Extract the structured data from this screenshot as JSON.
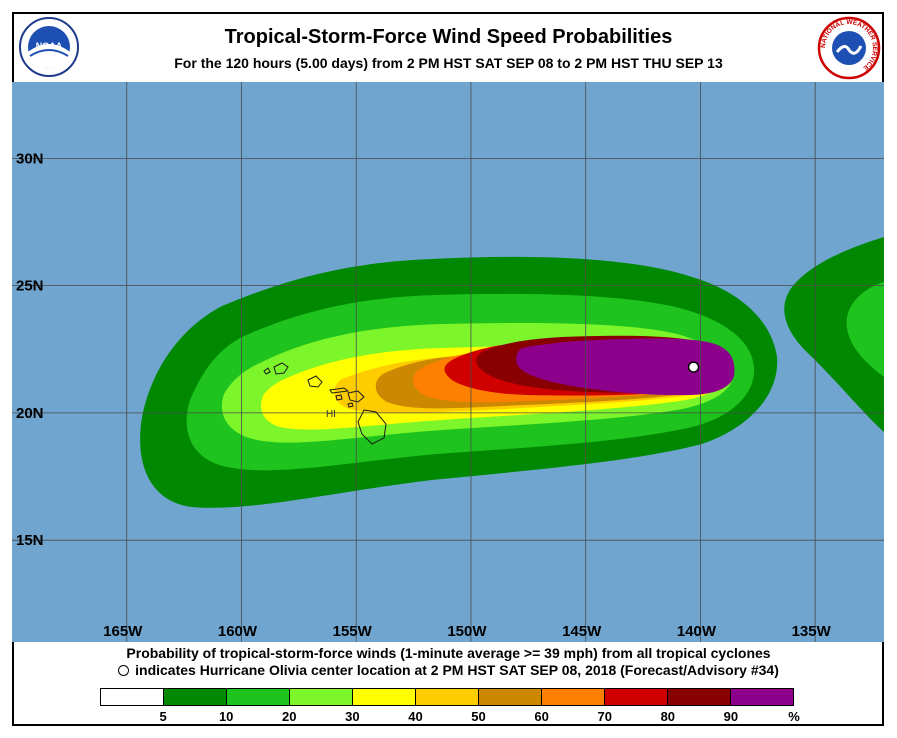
{
  "header": {
    "title": "Tropical-Storm-Force Wind Speed Probabilities",
    "subtitle": "For the 120 hours (5.00 days) from 2 PM HST SAT SEP 08 to 2 PM HST THU SEP 13",
    "left_logo": "NOAA",
    "right_logo": "NATIONAL WEATHER SERVICE"
  },
  "map": {
    "extent": {
      "lon_min": -170,
      "lon_max": -132,
      "lat_min": 11,
      "lat_max": 33
    },
    "ocean_color": "#6fa5cf",
    "grid_color": "#4a4a4a",
    "lat_labels": [
      {
        "lat": 30,
        "label": "30N"
      },
      {
        "lat": 25,
        "label": "25N"
      },
      {
        "lat": 20,
        "label": "20N"
      },
      {
        "lat": 15,
        "label": "15N"
      }
    ],
    "lon_labels": [
      {
        "lon": -165,
        "label": "165W"
      },
      {
        "lon": -160,
        "label": "160W"
      },
      {
        "lon": -155,
        "label": "155W"
      },
      {
        "lon": -150,
        "label": "150W"
      },
      {
        "lon": -145,
        "label": "145W"
      },
      {
        "lon": -140,
        "label": "140W"
      },
      {
        "lon": -135,
        "label": "135W"
      }
    ],
    "state_label": {
      "text": "HI",
      "lon": -156.1,
      "lat": 20.0
    },
    "storm_center": {
      "lon": -140.3,
      "lat": 21.8
    }
  },
  "footer": {
    "line1": "Probability of tropical-storm-force winds (1-minute average >= 39 mph) from all tropical cyclones",
    "line2": "indicates Hurricane Olivia center location at 2 PM HST SAT SEP 08, 2018 (Forecast/Advisory #34)"
  },
  "legend": {
    "colors": [
      "#ffffff",
      "#008800",
      "#1ec31e",
      "#7cf52a",
      "#ffff00",
      "#ffcc00",
      "#cc8800",
      "#ff8000",
      "#d00000",
      "#880000",
      "#8c008c"
    ],
    "labels": [
      "5",
      "10",
      "20",
      "30",
      "40",
      "50",
      "60",
      "70",
      "80",
      "90",
      "%"
    ]
  }
}
